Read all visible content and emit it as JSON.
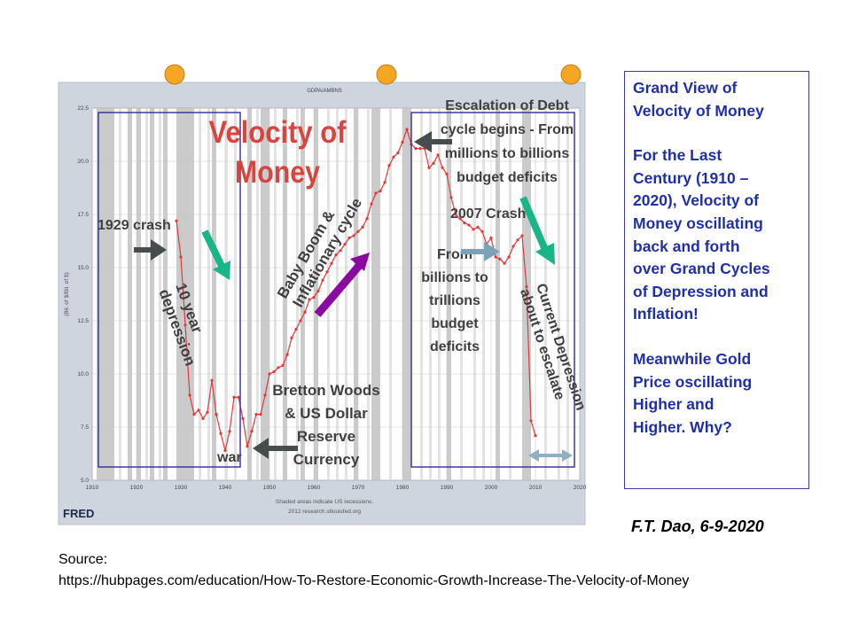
{
  "chart_data": {
    "type": "line",
    "title": "Velocity of Money",
    "series_label": "GDPA/AMBNS",
    "ylabel": "(Bil. of $/Bil. of $)",
    "xlim": [
      1910,
      2020
    ],
    "ylim": [
      5.0,
      22.5
    ],
    "x_ticks": [
      "1910",
      "1920",
      "1930",
      "1940",
      "1950",
      "1960",
      "1970",
      "1980",
      "1990",
      "2000",
      "2010",
      "2020"
    ],
    "y_ticks": [
      "5.0",
      "7.5",
      "10.0",
      "12.5",
      "15.0",
      "17.5",
      "20.0",
      "22.5"
    ],
    "grid": true,
    "series": [
      {
        "name": "",
        "color": "#e0393a",
        "x": [
          1929,
          1930,
          1931,
          1932,
          1933,
          1934,
          1935,
          1936,
          1937,
          1938,
          1939,
          1940,
          1941,
          1942,
          1943,
          1944,
          1945,
          1946,
          1947,
          1948,
          1949,
          1950,
          1951,
          1952,
          1953,
          1954,
          1955,
          1956,
          1957,
          1958,
          1959,
          1960,
          1961,
          1962,
          1963,
          1964,
          1965,
          1966,
          1967,
          1968,
          1969,
          1970,
          1971,
          1972,
          1973,
          1974,
          1975,
          1976,
          1977,
          1978,
          1979,
          1980,
          1981,
          1982,
          1983,
          1984,
          1985,
          1986,
          1987,
          1988,
          1989,
          1990,
          1991,
          1992,
          1993,
          1994,
          1995,
          1996,
          1997,
          1998,
          1999,
          2000,
          2001,
          2002,
          2003,
          2004,
          2005,
          2006,
          2007,
          2008,
          2009,
          2010
        ],
        "y": [
          17.2,
          15.5,
          12.3,
          9.0,
          8.1,
          8.3,
          7.9,
          8.2,
          9.7,
          8.1,
          7.2,
          6.4,
          7.3,
          8.9,
          8.9,
          7.9,
          6.6,
          7.3,
          8.1,
          8.1,
          9.0,
          10.0,
          10.1,
          10.3,
          10.4,
          10.9,
          11.7,
          12.1,
          12.5,
          12.9,
          13.5,
          13.6,
          13.9,
          14.4,
          14.8,
          15.2,
          15.6,
          15.8,
          16.1,
          16.4,
          16.5,
          16.7,
          16.9,
          17.3,
          18.0,
          18.5,
          18.6,
          19.0,
          19.8,
          20.2,
          20.4,
          20.9,
          21.5,
          20.8,
          20.6,
          20.6,
          20.6,
          19.7,
          19.9,
          20.3,
          19.7,
          19.4,
          18.3,
          17.5,
          17.3,
          17.1,
          17.0,
          16.8,
          16.9,
          16.7,
          16.1,
          16.4,
          15.5,
          15.4,
          15.2,
          15.5,
          16.0,
          16.3,
          16.5,
          14.1,
          7.8,
          7.1
        ]
      }
    ],
    "recession_note": "Shaded areas indicate US recessions.",
    "credit": "2012 research.stlouisfed.org",
    "logo": "FRED",
    "annotations": {
      "crash_1929": "1929 crash",
      "depression": [
        "10 year",
        "depression"
      ],
      "war": "war",
      "baby_boom": [
        "Baby Boom &",
        "Inflationary cycle"
      ],
      "bretton": [
        "Bretton Woods",
        "& US Dollar",
        "Reserve",
        "Currency"
      ],
      "escalation": [
        "Escalation of Debt",
        "cycle begins - From",
        "millions to billions",
        "budget deficits"
      ],
      "crash_2007": "2007 Crash",
      "trillions": [
        "From",
        "billions to",
        "trillions",
        "budget",
        "deficits"
      ],
      "current": [
        "Current Depression",
        "about to escalate"
      ]
    }
  },
  "sidebar": {
    "lines_1": [
      "Grand View of",
      "Velocity of Money"
    ],
    "lines_2": [
      "For the Last",
      "Century (1910 –",
      "2020), Velocity of",
      "Money oscillating",
      "back and forth",
      "over Grand Cycles",
      "of Depression and",
      "Inflation!"
    ],
    "lines_3": [
      "Meanwhile Gold",
      "Price oscillating",
      "Higher and",
      "Higher.  Why?"
    ]
  },
  "author": "F.T. Dao,  6-9-2020",
  "source": {
    "label": "Source:",
    "url": "https://hubpages.com/education/How-To-Restore-Economic-Growth-Increase-The-Velocity-of-Money"
  },
  "colors": {
    "line": "#e0393a",
    "title": "#d9443f",
    "annotation": "#3f3f3f",
    "box": "#3a3aa0",
    "arrow_green": "#19b487",
    "arrow_purple": "#8a0aa0",
    "arrow_dark": "#474c4c",
    "arrow_blue_gray": "#7aa3b8",
    "dot": "#f5a623",
    "sidebar_text": "#1f2fa8"
  }
}
